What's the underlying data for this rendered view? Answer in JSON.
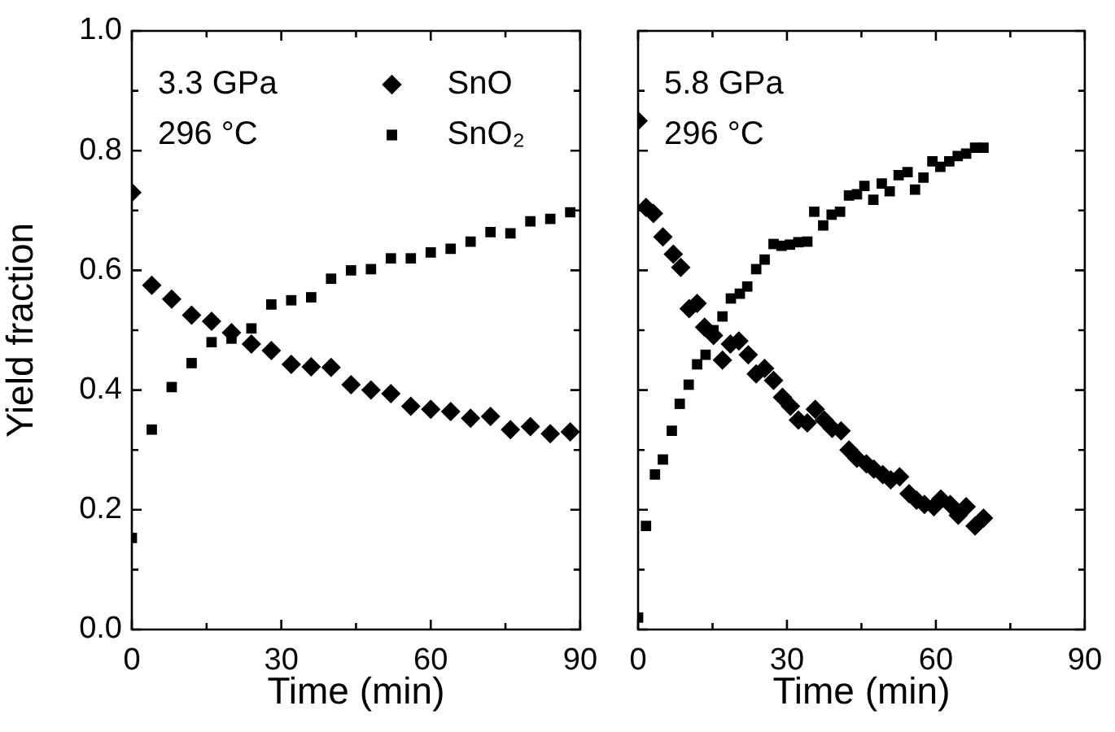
{
  "chart_data": [
    {
      "type": "scatter",
      "xlabel": "Time (min)",
      "ylabel": "Yield fraction",
      "xlim": [
        0,
        90
      ],
      "ylim": [
        0,
        1
      ],
      "xticks": [
        0,
        {
          "value": 15,
          "label": null
        },
        30,
        {
          "value": 45,
          "label": null
        },
        60,
        {
          "value": 75,
          "label": null
        },
        90
      ],
      "yticks": [
        {
          "value": 0,
          "label": "0.0"
        },
        {
          "value": 0.1,
          "label": null
        },
        0.2,
        {
          "value": 0.3,
          "label": null
        },
        0.4,
        {
          "value": 0.5,
          "label": null
        },
        0.6,
        {
          "value": 0.7,
          "label": null
        },
        0.8,
        {
          "value": 0.9,
          "label": null
        },
        {
          "value": 1,
          "label": "1.0"
        }
      ],
      "grid": false,
      "legend": "top right",
      "annotations": [
        "3.3 GPa",
        "296 °C"
      ],
      "series": [
        {
          "name": "SnO",
          "color": "#000000",
          "marker": "diamond",
          "x": [
            0,
            4,
            8,
            12,
            16,
            20,
            24,
            28,
            32,
            36,
            40,
            44,
            48,
            52,
            56,
            60,
            64,
            68,
            72,
            76,
            80,
            84,
            88
          ],
          "values": [
            0.73,
            0.575,
            0.552,
            0.525,
            0.515,
            0.496,
            0.477,
            0.466,
            0.443,
            0.439,
            0.438,
            0.409,
            0.4,
            0.394,
            0.373,
            0.368,
            0.364,
            0.353,
            0.356,
            0.334,
            0.339,
            0.327,
            0.33
          ]
        },
        {
          "name": "SnO₂",
          "color": "#000000",
          "marker": "square",
          "x": [
            0,
            4,
            8,
            12,
            16,
            20,
            24,
            28,
            32,
            36,
            40,
            44,
            48,
            52,
            56,
            60,
            64,
            68,
            72,
            76,
            80,
            84,
            88
          ],
          "values": [
            0.153,
            0.334,
            0.405,
            0.445,
            0.48,
            0.486,
            0.503,
            0.543,
            0.55,
            0.555,
            0.586,
            0.6,
            0.602,
            0.62,
            0.62,
            0.63,
            0.636,
            0.648,
            0.664,
            0.662,
            0.682,
            0.686,
            0.697
          ]
        }
      ]
    },
    {
      "type": "scatter",
      "xlabel": "Time (min)",
      "xlim": [
        0,
        90
      ],
      "ylim": [
        0,
        1
      ],
      "tick_labels": "x",
      "xticks": [
        0,
        {
          "value": 15,
          "label": null
        },
        30,
        {
          "value": 45,
          "label": null
        },
        60,
        {
          "value": 75,
          "label": null
        },
        90
      ],
      "yticks": [
        0,
        {
          "value": 0.1,
          "label": null
        },
        0.2,
        {
          "value": 0.3,
          "label": null
        },
        0.4,
        {
          "value": 0.5,
          "label": null
        },
        0.6,
        {
          "value": 0.7,
          "label": null
        },
        0.8,
        {
          "value": 0.9,
          "label": null
        },
        1
      ],
      "grid": false,
      "annotations": [
        "5.8 GPa",
        "296 °C"
      ],
      "series": [
        {
          "color": "#000000",
          "marker": "diamond",
          "x": [
            0,
            1.6,
            3.1,
            5,
            7.1,
            8.6,
            10.3,
            11.9,
            13.4,
            15.2,
            17,
            18.6,
            20.3,
            22.2,
            23.8,
            25.5,
            27.3,
            29.1,
            30.7,
            32.3,
            34.1,
            35.7,
            37.5,
            39.1,
            40.9,
            42.5,
            44.1,
            46,
            47.5,
            49.3,
            50.9,
            52.7,
            54.6,
            56.1,
            57.7,
            59.6,
            61,
            62.9,
            64.5,
            66.1,
            67.9,
            69.6
          ],
          "values": [
            0.85,
            0.705,
            0.695,
            0.656,
            0.627,
            0.605,
            0.536,
            0.545,
            0.505,
            0.491,
            0.45,
            0.477,
            0.482,
            0.459,
            0.427,
            0.436,
            0.416,
            0.388,
            0.373,
            0.35,
            0.345,
            0.368,
            0.35,
            0.336,
            0.332,
            0.3,
            0.286,
            0.277,
            0.268,
            0.259,
            0.25,
            0.255,
            0.227,
            0.216,
            0.209,
            0.205,
            0.218,
            0.209,
            0.191,
            0.205,
            0.173,
            0.186
          ]
        },
        {
          "color": "#000000",
          "marker": "square",
          "x": [
            0,
            1.6,
            3.4,
            5,
            6.8,
            8.4,
            10.2,
            11.9,
            13.6,
            15.2,
            17,
            18.7,
            20.5,
            22,
            23.8,
            25.5,
            27.3,
            28.9,
            30.6,
            32.3,
            34.1,
            35.5,
            37.3,
            39,
            40.7,
            42.5,
            44.1,
            45.6,
            47.4,
            49.1,
            50.7,
            52.5,
            54.3,
            55.8,
            57.5,
            59.3,
            60.9,
            62.7,
            64.4,
            66.1,
            67.9,
            69.6
          ],
          "values": [
            0.02,
            0.173,
            0.259,
            0.284,
            0.332,
            0.377,
            0.409,
            0.443,
            0.459,
            0.5,
            0.523,
            0.553,
            0.561,
            0.573,
            0.602,
            0.618,
            0.644,
            0.641,
            0.643,
            0.647,
            0.648,
            0.698,
            0.675,
            0.693,
            0.698,
            0.725,
            0.727,
            0.741,
            0.718,
            0.745,
            0.732,
            0.759,
            0.764,
            0.735,
            0.755,
            0.782,
            0.773,
            0.782,
            0.791,
            0.795,
            0.805,
            0.805
          ]
        }
      ]
    }
  ]
}
